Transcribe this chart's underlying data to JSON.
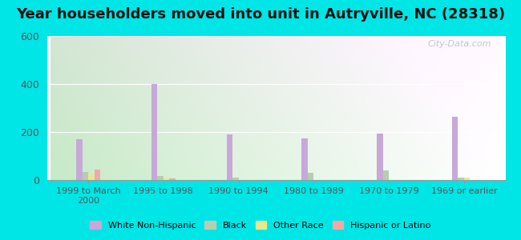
{
  "title": "Year householders moved into unit in Autryville, NC (28318)",
  "categories": [
    "1999 to March\n2000",
    "1995 to 1998",
    "1990 to 1994",
    "1980 to 1989",
    "1970 to 1979",
    "1969 or earlier"
  ],
  "series": {
    "White Non-Hispanic": [
      170,
      400,
      190,
      175,
      193,
      265
    ],
    "Black": [
      32,
      18,
      10,
      30,
      40,
      10
    ],
    "Other Race": [
      22,
      8,
      0,
      0,
      0,
      10
    ],
    "Hispanic or Latino": [
      42,
      8,
      0,
      0,
      0,
      0
    ]
  },
  "colors": {
    "White Non-Hispanic": "#c8a8d8",
    "Black": "#b8ccb0",
    "Other Race": "#e8e890",
    "Hispanic or Latino": "#f0a8a8"
  },
  "ylim": [
    0,
    600
  ],
  "yticks": [
    0,
    200,
    400,
    600
  ],
  "outer_background": "#00e5e5",
  "plot_bg_left": "#c8e8c8",
  "plot_bg_right": "#f0f8f8",
  "watermark": "City-Data.com",
  "bar_width": 0.08,
  "title_fontsize": 13
}
